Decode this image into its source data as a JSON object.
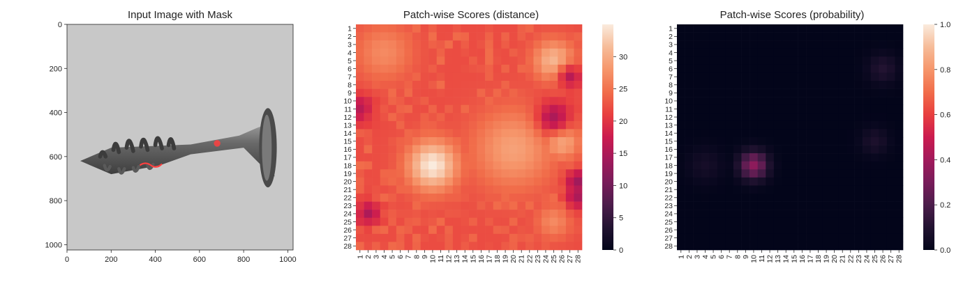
{
  "chart_data": [
    {
      "type": "image",
      "title": "Input Image with Mask",
      "xlim": [
        0,
        1024
      ],
      "ylim": [
        1024,
        0
      ],
      "xticks": [
        0,
        200,
        400,
        600,
        800,
        1000
      ],
      "yticks": [
        0,
        200,
        400,
        600,
        800,
        1000
      ],
      "subject": "screw",
      "mask_color": "#ff4040",
      "mask_regions": [
        {
          "label": "thread defect",
          "x": [
            330,
            430
          ],
          "y": [
            620,
            650
          ]
        },
        {
          "label": "shank defect",
          "x": [
            665,
            695
          ],
          "y": [
            525,
            555
          ]
        }
      ]
    },
    {
      "type": "heatmap",
      "title": "Patch-wise Scores (distance)",
      "grid": [
        28,
        28
      ],
      "x_ticks": [
        "1",
        "2",
        "3",
        "4",
        "5",
        "6",
        "7",
        "8",
        "9",
        "10",
        "11",
        "12",
        "13",
        "14",
        "15",
        "16",
        "17",
        "18",
        "19",
        "20",
        "21",
        "22",
        "23",
        "24",
        "25",
        "26",
        "27",
        "28"
      ],
      "y_ticks": [
        "1",
        "2",
        "3",
        "4",
        "5",
        "6",
        "7",
        "8",
        "9",
        "10",
        "11",
        "12",
        "13",
        "14",
        "15",
        "16",
        "17",
        "18",
        "19",
        "20",
        "21",
        "22",
        "23",
        "24",
        "25",
        "26",
        "27",
        "28"
      ],
      "colorbar": {
        "min": 0,
        "max": 35,
        "ticks": [
          0,
          5,
          10,
          15,
          20,
          25,
          30
        ],
        "colormap": "rocket"
      },
      "typical_value": 22,
      "hotspots": [
        {
          "row": 18,
          "col": 10,
          "value": 35,
          "spread": 2.2
        },
        {
          "row": 5,
          "col": 25,
          "value": 31,
          "spread": 1.8
        },
        {
          "row": 16,
          "col": 20,
          "value": 29,
          "spread": 3.5
        },
        {
          "row": 4,
          "col": 4,
          "value": 27,
          "spread": 2.5
        },
        {
          "row": 15,
          "col": 26,
          "value": 30,
          "spread": 1.6
        },
        {
          "row": 25,
          "col": 25,
          "value": 27,
          "spread": 1.5
        }
      ],
      "coldspots": [
        {
          "row": 11,
          "col": 1,
          "value": 16,
          "spread": 1.2
        },
        {
          "row": 24,
          "col": 2,
          "value": 15,
          "spread": 1.0
        },
        {
          "row": 12,
          "col": 25,
          "value": 15,
          "spread": 1.4
        },
        {
          "row": 7,
          "col": 27,
          "value": 16,
          "spread": 1.0
        },
        {
          "row": 20,
          "col": 28,
          "value": 14,
          "spread": 1.0
        },
        {
          "row": 22,
          "col": 28,
          "value": 15,
          "spread": 1.0
        }
      ]
    },
    {
      "type": "heatmap",
      "title": "Patch-wise Scores (probability)",
      "grid": [
        28,
        28
      ],
      "x_ticks": [
        "1",
        "2",
        "3",
        "4",
        "5",
        "6",
        "7",
        "8",
        "9",
        "10",
        "11",
        "12",
        "13",
        "14",
        "15",
        "16",
        "17",
        "18",
        "19",
        "20",
        "21",
        "22",
        "23",
        "24",
        "25",
        "26",
        "27",
        "28"
      ],
      "y_ticks": [
        "1",
        "2",
        "3",
        "4",
        "5",
        "6",
        "7",
        "8",
        "9",
        "10",
        "11",
        "12",
        "13",
        "14",
        "15",
        "16",
        "17",
        "18",
        "19",
        "20",
        "21",
        "22",
        "23",
        "24",
        "25",
        "26",
        "27",
        "28"
      ],
      "colorbar": {
        "min": 0.0,
        "max": 1.0,
        "ticks": [
          "0.0",
          "0.2",
          "0.4",
          "0.6",
          "0.8",
          "1.0"
        ],
        "colormap": "rocket"
      },
      "typical_value": 0.0,
      "hotspots": [
        {
          "row": 18,
          "col": 10,
          "value": 0.35,
          "spread": 1.2
        },
        {
          "row": 6,
          "col": 26,
          "value": 0.1,
          "spread": 1.3
        },
        {
          "row": 15,
          "col": 25,
          "value": 0.08,
          "spread": 1.2
        },
        {
          "row": 18,
          "col": 4,
          "value": 0.06,
          "spread": 1.5
        }
      ]
    }
  ]
}
